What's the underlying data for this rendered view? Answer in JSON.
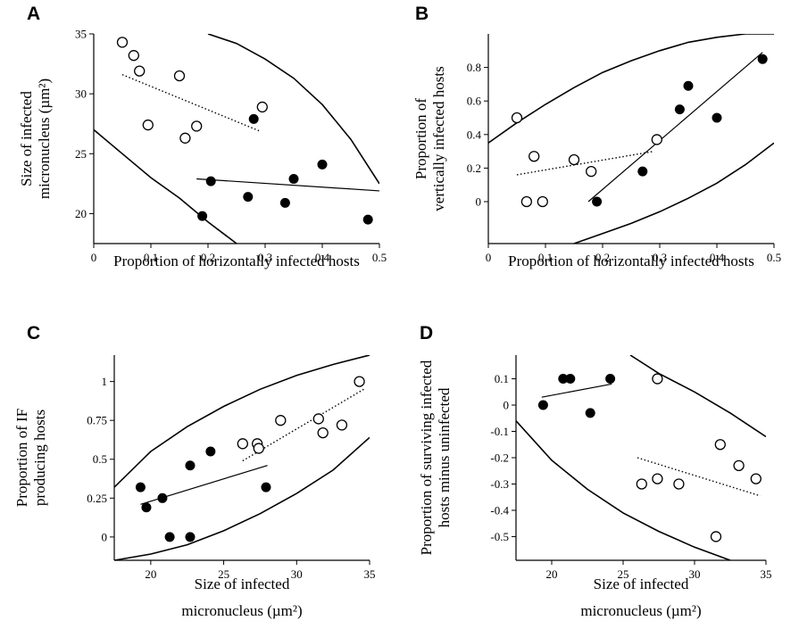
{
  "chart_data": [
    {
      "letter": "A",
      "type": "scatter",
      "xlabel": [
        "Proportion of horizontally infected hosts"
      ],
      "ylabel": [
        "Size of infected",
        "micronucleus (µm²)"
      ],
      "xlim": [
        0,
        0.5
      ],
      "ylim": [
        17.5,
        35
      ],
      "xticks": [
        0,
        0.1,
        0.2,
        0.3,
        0.4,
        0.5
      ],
      "xtick_labels": [
        "0",
        "0.1",
        "0.2",
        "0.3",
        "0.4",
        "0.5"
      ],
      "yticks": [
        20,
        25,
        30,
        35
      ],
      "ytick_labels": [
        "20",
        "25",
        "30",
        "35"
      ],
      "series": [
        {
          "style": "open",
          "points": [
            [
              0.05,
              34.3
            ],
            [
              0.07,
              33.2
            ],
            [
              0.08,
              31.9
            ],
            [
              0.095,
              27.4
            ],
            [
              0.15,
              31.5
            ],
            [
              0.16,
              26.3
            ],
            [
              0.18,
              27.3
            ],
            [
              0.295,
              28.9
            ]
          ]
        },
        {
          "style": "filled",
          "points": [
            [
              0.19,
              19.8
            ],
            [
              0.205,
              22.7
            ],
            [
              0.27,
              21.4
            ],
            [
              0.28,
              27.9
            ],
            [
              0.335,
              20.9
            ],
            [
              0.35,
              22.9
            ],
            [
              0.4,
              24.1
            ],
            [
              0.48,
              19.5
            ]
          ]
        }
      ],
      "fits": [
        {
          "style": "dotted",
          "x": [
            0.05,
            0.29
          ],
          "y": [
            31.6,
            26.9
          ]
        },
        {
          "style": "solid",
          "x": [
            0.18,
            0.5
          ],
          "y": [
            22.9,
            21.9
          ]
        }
      ],
      "envelopes": [
        {
          "x": [
            0.2,
            0.25,
            0.3,
            0.35,
            0.4,
            0.45,
            0.5
          ],
          "y": [
            35,
            34.2,
            32.9,
            31.3,
            29.1,
            26.2,
            22.5
          ]
        },
        {
          "x": [
            0,
            0.05,
            0.1,
            0.15,
            0.2,
            0.25
          ],
          "y": [
            27,
            25,
            23,
            21.3,
            19.3,
            17.5
          ]
        }
      ]
    },
    {
      "letter": "B",
      "type": "scatter",
      "xlabel": [
        "Proportion of horizontally infected hosts"
      ],
      "ylabel": [
        "Proportion of",
        "vertically infected hosts"
      ],
      "xlim": [
        0,
        0.5
      ],
      "ylim": [
        -0.25,
        1
      ],
      "xticks": [
        0,
        0.1,
        0.2,
        0.3,
        0.4,
        0.5
      ],
      "xtick_labels": [
        "0",
        "0.1",
        "0.2",
        "0.3",
        "0.4",
        "0.5"
      ],
      "yticks": [
        0,
        0.2,
        0.4,
        0.6,
        0.8
      ],
      "ytick_labels": [
        "0",
        "0.2",
        "0.4",
        "0.6",
        "0.8"
      ],
      "series": [
        {
          "style": "open",
          "points": [
            [
              0.05,
              0.5
            ],
            [
              0.067,
              0
            ],
            [
              0.08,
              0.27
            ],
            [
              0.095,
              0
            ],
            [
              0.15,
              0.25
            ],
            [
              0.18,
              0.18
            ],
            [
              0.295,
              0.37
            ]
          ]
        },
        {
          "style": "filled",
          "points": [
            [
              0.19,
              0
            ],
            [
              0.27,
              0.18
            ],
            [
              0.335,
              0.55
            ],
            [
              0.35,
              0.69
            ],
            [
              0.4,
              0.5
            ],
            [
              0.48,
              0.85
            ]
          ]
        }
      ],
      "fits": [
        {
          "style": "dotted",
          "x": [
            0.05,
            0.29
          ],
          "y": [
            0.16,
            0.3
          ]
        },
        {
          "style": "solid",
          "x": [
            0.175,
            0.48
          ],
          "y": [
            0,
            0.89
          ]
        }
      ],
      "envelopes": [
        {
          "x": [
            0,
            0.05,
            0.1,
            0.15,
            0.2,
            0.25,
            0.3,
            0.35,
            0.4,
            0.45,
            0.5
          ],
          "y": [
            0.35,
            0.47,
            0.58,
            0.68,
            0.77,
            0.84,
            0.9,
            0.95,
            0.98,
            1,
            1
          ]
        },
        {
          "x": [
            0.15,
            0.2,
            0.25,
            0.3,
            0.35,
            0.4,
            0.45,
            0.5
          ],
          "y": [
            -0.25,
            -0.19,
            -0.13,
            -0.06,
            0.02,
            0.11,
            0.22,
            0.35
          ]
        }
      ]
    },
    {
      "letter": "C",
      "type": "scatter",
      "xlabel": [
        "Size of infected",
        "micronucleus (µm²)"
      ],
      "ylabel": [
        "Proportion of  IF",
        "producing hosts"
      ],
      "xlim": [
        17.5,
        35
      ],
      "ylim": [
        -0.15,
        1.17
      ],
      "xticks": [
        20,
        25,
        30,
        35
      ],
      "xtick_labels": [
        "20",
        "25",
        "30",
        "35"
      ],
      "yticks": [
        0,
        0.25,
        0.5,
        0.75,
        1
      ],
      "ytick_labels": [
        "0",
        "0.25",
        "0.5",
        "0.75",
        "1"
      ],
      "series": [
        {
          "style": "open",
          "points": [
            [
              26.3,
              0.6
            ],
            [
              27.3,
              0.6
            ],
            [
              27.4,
              0.57
            ],
            [
              28.9,
              0.75
            ],
            [
              31.5,
              0.76
            ],
            [
              31.8,
              0.67
            ],
            [
              33.1,
              0.72
            ],
            [
              34.3,
              1
            ]
          ]
        },
        {
          "style": "filled",
          "points": [
            [
              19.3,
              0.32
            ],
            [
              19.7,
              0.19
            ],
            [
              20.8,
              0.25
            ],
            [
              21.3,
              0
            ],
            [
              22.7,
              0.46
            ],
            [
              22.7,
              0
            ],
            [
              24.1,
              0.55
            ],
            [
              27.9,
              0.32
            ]
          ]
        }
      ],
      "fits": [
        {
          "style": "dotted",
          "x": [
            26.3,
            34.6
          ],
          "y": [
            0.49,
            0.95
          ]
        },
        {
          "style": "solid",
          "x": [
            19.3,
            28
          ],
          "y": [
            0.21,
            0.46
          ]
        }
      ],
      "envelopes": [
        {
          "x": [
            17.5,
            20,
            22.5,
            25,
            27.5,
            30,
            32.5,
            35
          ],
          "y": [
            0.32,
            0.55,
            0.71,
            0.84,
            0.95,
            1.04,
            1.11,
            1.17
          ]
        },
        {
          "x": [
            17.5,
            20,
            22.5,
            25,
            27.5,
            30,
            32.5,
            35
          ],
          "y": [
            -0.15,
            -0.11,
            -0.05,
            0.04,
            0.15,
            0.28,
            0.43,
            0.64
          ]
        }
      ]
    },
    {
      "letter": "D",
      "type": "scatter",
      "xlabel": [
        "Size of infected",
        "micronucleus (µm²)"
      ],
      "ylabel": [
        "Proportion of surviving infected",
        "hosts minus uninfected"
      ],
      "xlim": [
        17.5,
        35
      ],
      "ylim": [
        -0.59,
        0.19
      ],
      "xticks": [
        20,
        25,
        30,
        35
      ],
      "xtick_labels": [
        "20",
        "25",
        "30",
        "35"
      ],
      "yticks": [
        0.1,
        0,
        -0.1,
        -0.2,
        -0.3,
        -0.4,
        -0.5
      ],
      "ytick_labels": [
        "0.1",
        "0",
        "-0.1",
        "-0.2",
        "-0.3",
        "-0.4",
        "-0.5"
      ],
      "series": [
        {
          "style": "open",
          "points": [
            [
              26.3,
              -0.3
            ],
            [
              27.4,
              0.1
            ],
            [
              27.4,
              -0.28
            ],
            [
              28.9,
              -0.3
            ],
            [
              31.5,
              -0.5
            ],
            [
              31.8,
              -0.15
            ],
            [
              33.1,
              -0.23
            ],
            [
              34.3,
              -0.28
            ]
          ]
        },
        {
          "style": "filled",
          "points": [
            [
              19.4,
              0
            ],
            [
              20.8,
              0.1
            ],
            [
              21.3,
              0.1
            ],
            [
              22.7,
              -0.03
            ],
            [
              24.1,
              0.1
            ]
          ]
        }
      ],
      "fits": [
        {
          "style": "dotted",
          "x": [
            26,
            34.6
          ],
          "y": [
            -0.2,
            -0.345
          ]
        },
        {
          "style": "solid",
          "x": [
            19.3,
            24.2
          ],
          "y": [
            0.03,
            0.08
          ]
        }
      ],
      "envelopes": [
        {
          "x": [
            25.5,
            27.5,
            30,
            32.5,
            35
          ],
          "y": [
            0.19,
            0.12,
            0.05,
            -0.03,
            -0.12
          ]
        },
        {
          "x": [
            17.5,
            20,
            22.5,
            25,
            27.5,
            30,
            32.5
          ],
          "y": [
            -0.06,
            -0.21,
            -0.32,
            -0.41,
            -0.48,
            -0.54,
            -0.59
          ]
        }
      ]
    }
  ]
}
